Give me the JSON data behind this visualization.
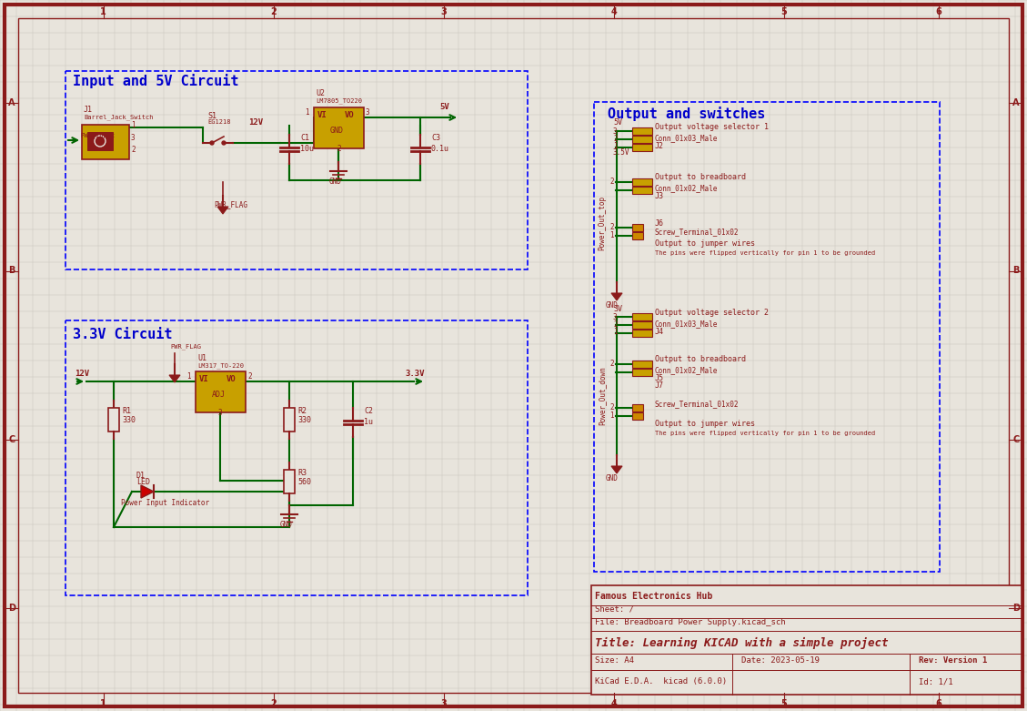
{
  "bg_color": "#e8e4dc",
  "grid_color": "#c8c4bc",
  "border_color": "#8b1a1a",
  "wire_color": "#006400",
  "component_fill": "#c8a000",
  "component_dark": "#8b6914",
  "text_color_dark": "#8b1a1a",
  "text_color_blue": "#0000cc",
  "title_block": {
    "company": "Famous Electronics Hub",
    "sheet": "Sheet: /",
    "file": "File: Breadboard Power Supply.kicad_sch",
    "title": "Title: Learning KICAD with a simple project",
    "size": "Size: A4",
    "date": "Date: 2023-05-19",
    "rev": "Rev: Version 1",
    "tool": "KiCad E.D.A.  kicad (6.0.0)",
    "id": "Id: 1/1"
  },
  "section_5v_title": "Input and 5V Circuit",
  "section_33v_title": "3.3V Circuit",
  "section_output_title": "Output and switches",
  "figsize": [
    11.29,
    7.81
  ],
  "dpi": 100
}
